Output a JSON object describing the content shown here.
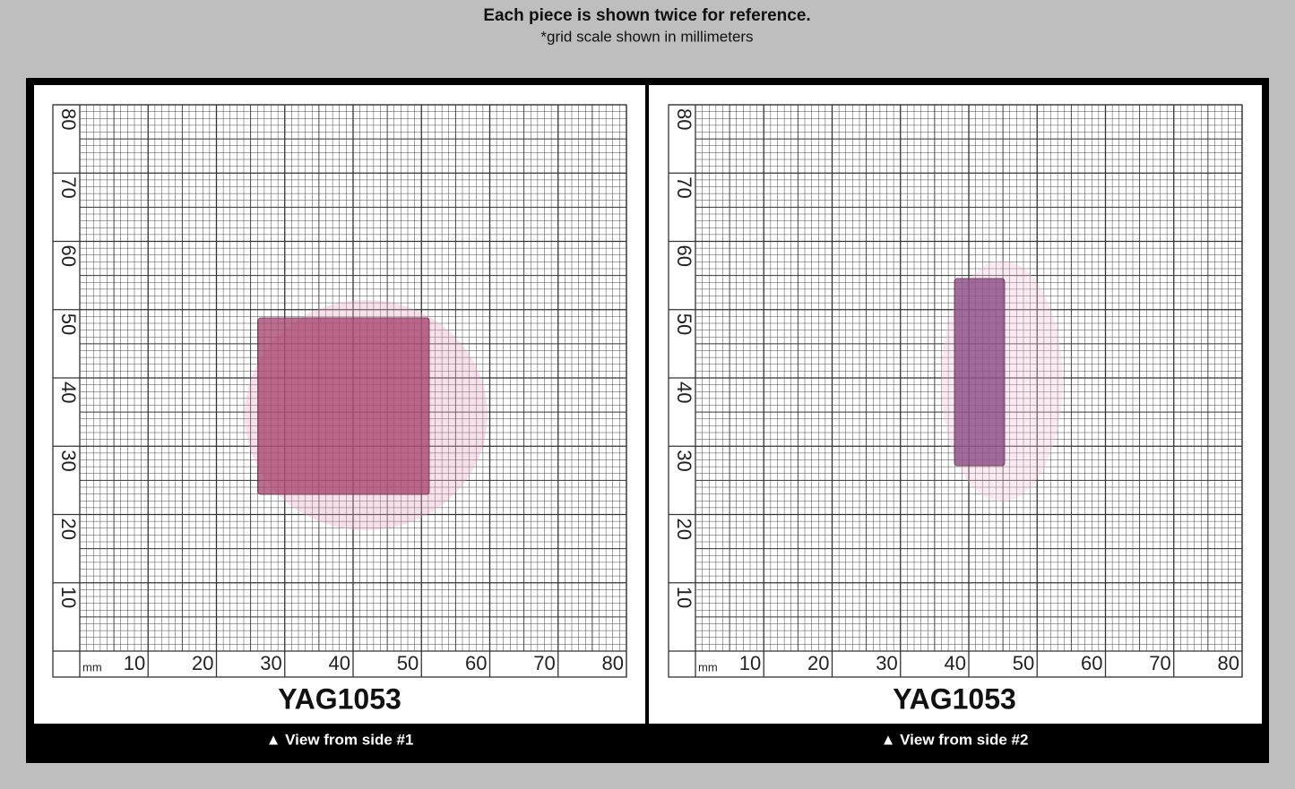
{
  "header": {
    "title": "Each piece is shown twice for reference.",
    "subtitle": "*grid scale shown in millimeters"
  },
  "panels": [
    {
      "label": "YAG1053",
      "caption": "▲ View from side #1",
      "unit": "mm",
      "x_ticks": [
        "10",
        "20",
        "30",
        "40",
        "50",
        "60",
        "70",
        "80"
      ],
      "y_ticks": [
        "10",
        "20",
        "30",
        "40",
        "50",
        "60",
        "70",
        "80"
      ]
    },
    {
      "label": "YAG1053",
      "caption": "▲ View from side #2",
      "unit": "mm",
      "x_ticks": [
        "10",
        "20",
        "30",
        "40",
        "50",
        "60",
        "70",
        "80"
      ],
      "y_ticks": [
        "10",
        "20",
        "30",
        "40",
        "50",
        "60",
        "70",
        "80"
      ]
    }
  ]
}
